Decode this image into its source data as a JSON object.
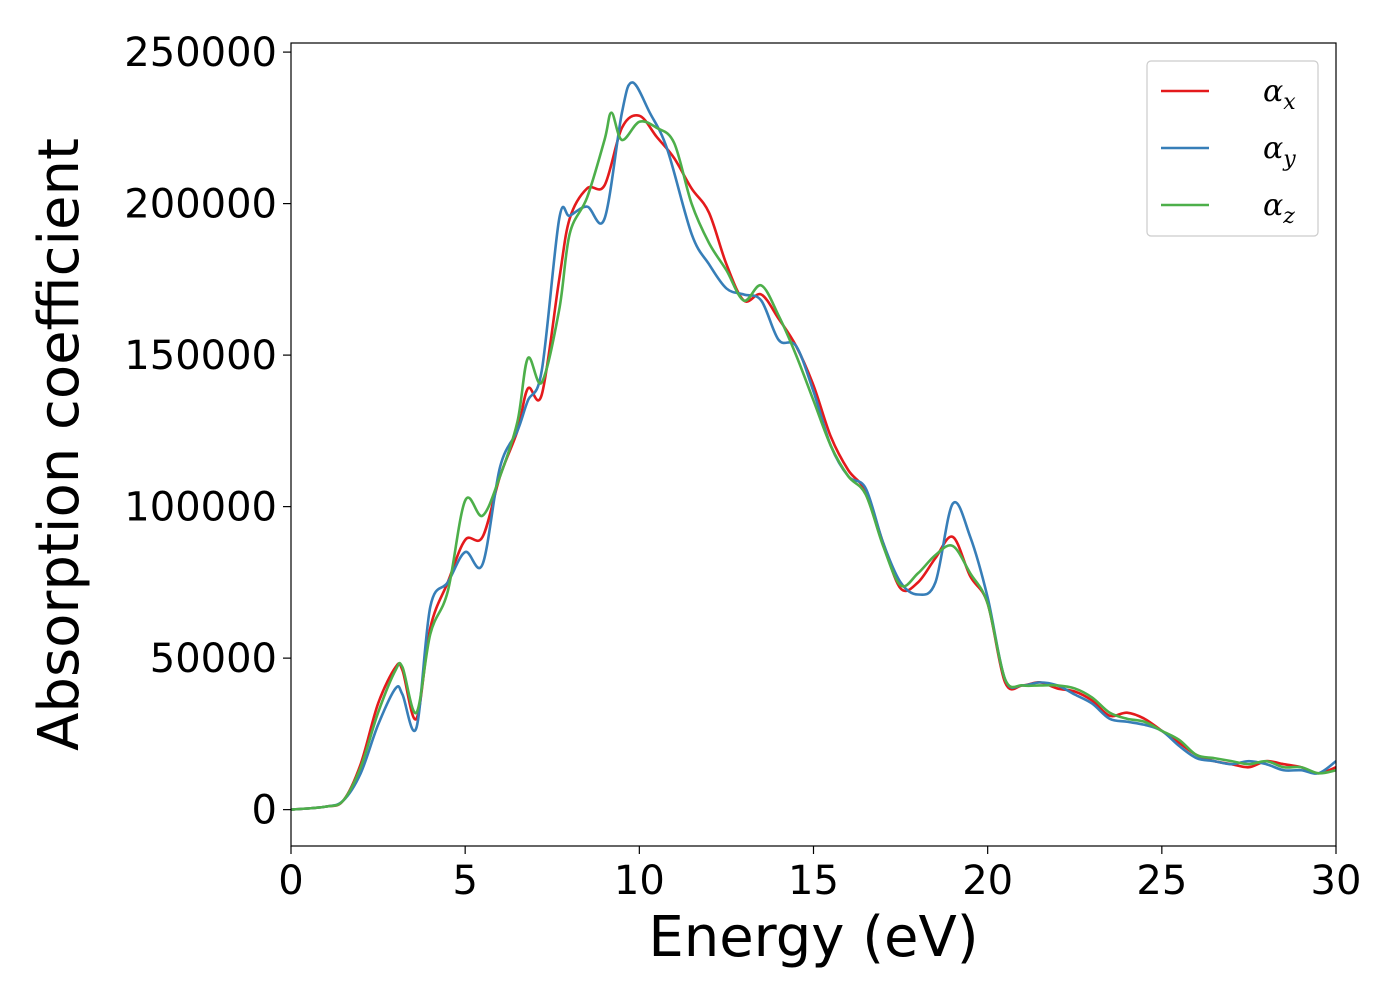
{
  "chart_data": {
    "type": "line",
    "xlabel": "Energy (eV)",
    "ylabel": "Absorption coefficient",
    "xlim": [
      0,
      30
    ],
    "ylim": [
      -12000,
      253000
    ],
    "xticks": [
      0,
      5,
      10,
      15,
      20,
      25,
      30
    ],
    "xtick_labels": [
      "0",
      "5",
      "10",
      "15",
      "20",
      "25",
      "30"
    ],
    "yticks": [
      0,
      50000,
      100000,
      150000,
      200000,
      250000
    ],
    "ytick_labels": [
      "0",
      "50000",
      "100000",
      "150000",
      "200000",
      "250000"
    ],
    "grid": false,
    "legend_position": "top-right",
    "series": [
      {
        "name": "α",
        "subscript": "x",
        "color": "#e41a1c",
        "x": [
          0,
          1,
          1.5,
          2,
          2.5,
          3,
          3.2,
          3.6,
          4,
          4.5,
          5,
          5.5,
          6,
          6.5,
          6.8,
          7.2,
          7.7,
          8,
          8.5,
          9,
          9.5,
          10,
          10.5,
          11,
          11.5,
          12,
          12.5,
          13,
          13.5,
          14,
          14.5,
          15,
          15.5,
          16,
          16.5,
          17,
          17.5,
          18,
          18.5,
          19,
          19.5,
          20,
          20.5,
          21,
          21.5,
          22,
          22.5,
          23,
          23.5,
          24,
          24.5,
          25,
          25.5,
          26,
          26.5,
          27,
          27.5,
          28,
          28.5,
          29,
          29.5,
          30
        ],
        "y": [
          0,
          1000,
          3000,
          15000,
          35000,
          47000,
          46000,
          30000,
          60000,
          75000,
          89000,
          90000,
          110000,
          125000,
          139000,
          137000,
          175000,
          195000,
          205000,
          206000,
          225000,
          229000,
          222000,
          215000,
          205000,
          197000,
          180000,
          168000,
          170000,
          162000,
          153000,
          140000,
          123000,
          112000,
          105000,
          88000,
          73000,
          75000,
          83000,
          90000,
          77000,
          68000,
          42000,
          41000,
          42000,
          40000,
          39000,
          36000,
          31000,
          32000,
          30000,
          26000,
          22000,
          18000,
          16000,
          15000,
          14000,
          16000,
          15000,
          14000,
          12000,
          14000
        ]
      },
      {
        "name": "α",
        "subscript": "y",
        "color": "#377eb8",
        "x": [
          0,
          1,
          1.5,
          2,
          2.5,
          3,
          3.2,
          3.6,
          4,
          4.5,
          5,
          5.5,
          6,
          6.5,
          6.8,
          7.2,
          7.7,
          8,
          8.5,
          9,
          9.5,
          9.8,
          10.3,
          10.8,
          11.5,
          12,
          12.5,
          13,
          13.5,
          14,
          14.5,
          15,
          15.5,
          16,
          16.5,
          17,
          17.5,
          18,
          18.5,
          19,
          19.5,
          20,
          20.5,
          21,
          21.5,
          22,
          22.5,
          23,
          23.5,
          24,
          24.5,
          25,
          25.5,
          26,
          26.5,
          27,
          27.5,
          28,
          28.5,
          29,
          29.5,
          30
        ],
        "y": [
          0,
          1000,
          3000,
          12000,
          28000,
          40000,
          38000,
          27000,
          67000,
          75000,
          85000,
          81000,
          113000,
          125000,
          135000,
          145000,
          195000,
          196000,
          199000,
          195000,
          230000,
          240000,
          230000,
          218000,
          190000,
          180000,
          172000,
          170000,
          168000,
          155000,
          153000,
          138000,
          120000,
          110000,
          106000,
          88000,
          75000,
          71000,
          75000,
          101000,
          90000,
          70000,
          43000,
          41000,
          42000,
          41000,
          38000,
          35000,
          30000,
          29000,
          28000,
          26000,
          21000,
          17000,
          16000,
          15000,
          16000,
          15000,
          13000,
          13000,
          12000,
          16000
        ]
      },
      {
        "name": "α",
        "subscript": "z",
        "color": "#4daf4a",
        "x": [
          0,
          1,
          1.5,
          2,
          2.5,
          3,
          3.2,
          3.6,
          4,
          4.5,
          5,
          5.5,
          6,
          6.5,
          6.8,
          7.2,
          7.7,
          8,
          8.5,
          9,
          9.2,
          9.5,
          10,
          10.5,
          11,
          11.5,
          12,
          12.5,
          13,
          13.5,
          14,
          14.5,
          15,
          15.5,
          16,
          16.5,
          17,
          17.5,
          18,
          18.5,
          19,
          19.5,
          20,
          20.5,
          21,
          21.5,
          22,
          22.5,
          23,
          23.5,
          24,
          24.5,
          25,
          25.5,
          26,
          26.5,
          27,
          27.5,
          28,
          28.5,
          29,
          29.5,
          30
        ],
        "y": [
          0,
          1000,
          3000,
          14000,
          32000,
          46000,
          47000,
          32000,
          58000,
          72000,
          102000,
          97000,
          110000,
          128000,
          149000,
          141000,
          165000,
          190000,
          202000,
          221000,
          230000,
          221000,
          227000,
          225000,
          220000,
          200000,
          187000,
          178000,
          168000,
          173000,
          163000,
          150000,
          135000,
          120000,
          110000,
          104000,
          87000,
          74000,
          78000,
          84000,
          87000,
          78000,
          68000,
          43000,
          41000,
          41000,
          41000,
          40000,
          37000,
          32000,
          30000,
          29000,
          26000,
          23000,
          18000,
          17000,
          16000,
          15000,
          16000,
          14000,
          14000,
          12000,
          13000
        ]
      }
    ]
  }
}
